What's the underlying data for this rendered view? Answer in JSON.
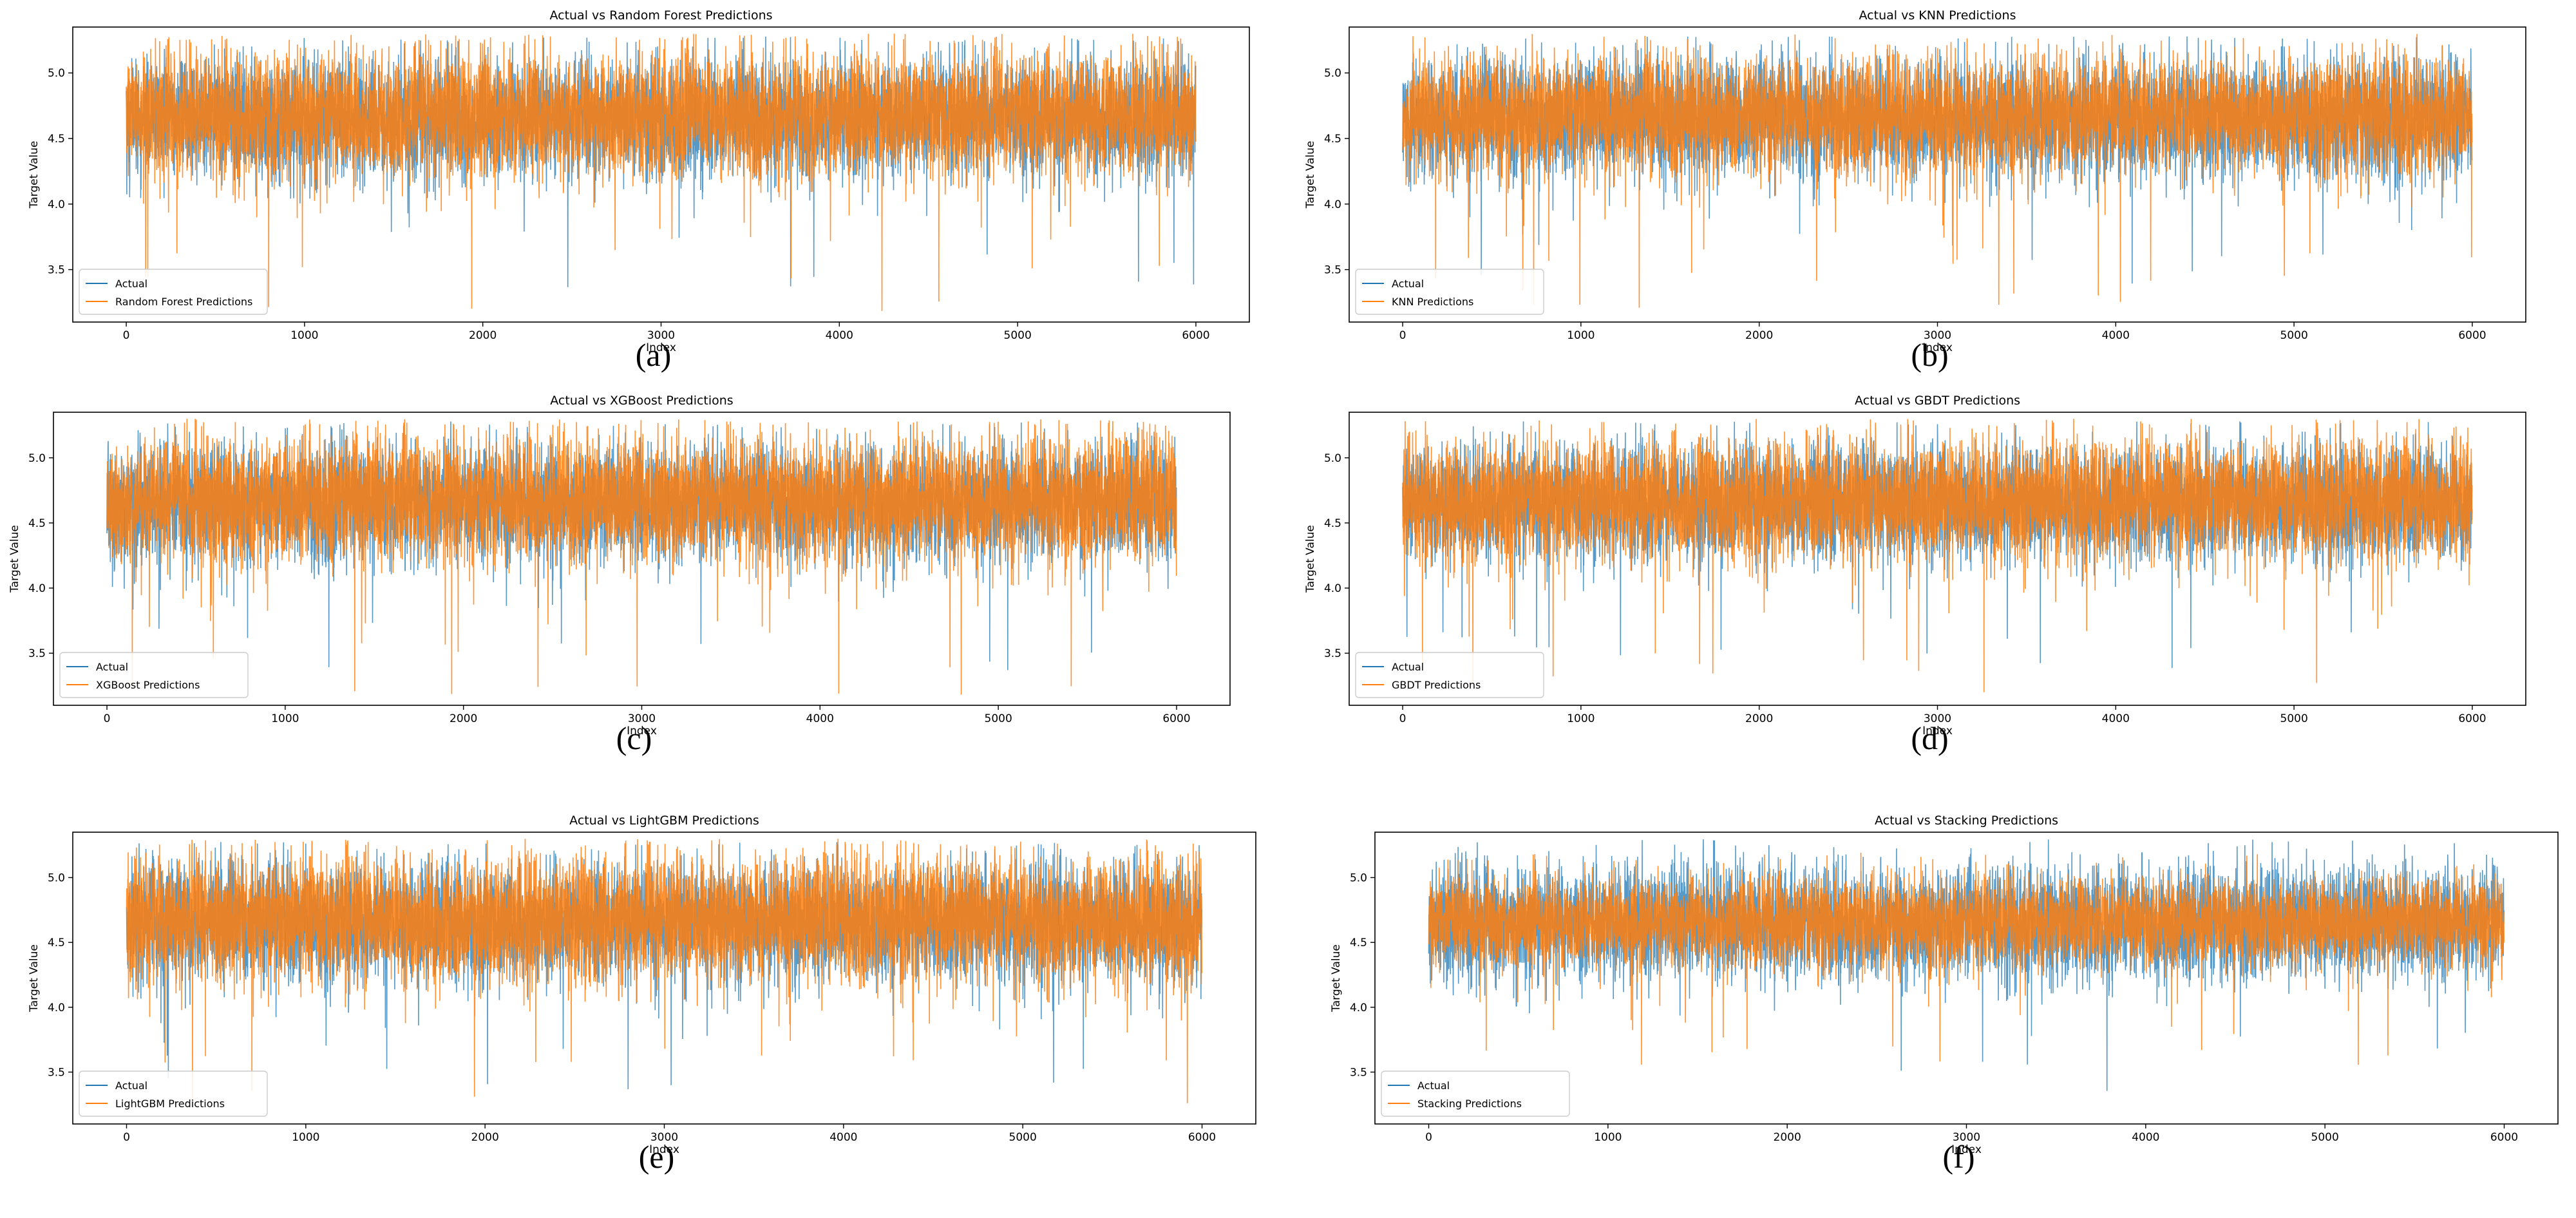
{
  "colors": {
    "actual": "#1f77b4",
    "predicted": "#ff7f0e",
    "axes": "#000000",
    "text": "#000000"
  },
  "chart_data": [
    {
      "panel": "(a)",
      "type": "line",
      "title": "Actual vs Random Forest Predictions",
      "xlabel": "Index",
      "ylabel": "Target Value",
      "xlim": [
        -300,
        6300
      ],
      "ylim": [
        3.1,
        5.35
      ],
      "xticks": [
        0,
        1000,
        2000,
        3000,
        4000,
        5000,
        6000
      ],
      "yticks": [
        3.5,
        4.0,
        4.5,
        5.0
      ],
      "legend": {
        "position": "lower-left",
        "entries": [
          "Actual",
          "Random Forest Predictions"
        ]
      },
      "grid": false,
      "n_points": 6000,
      "series": [
        {
          "name": "Actual",
          "color": "#1f77b4",
          "mean": 4.65,
          "range": [
            3.35,
            5.28
          ]
        },
        {
          "name": "Random Forest Predictions",
          "color": "#ff7f0e",
          "mean": 4.68,
          "range": [
            3.17,
            5.3
          ]
        }
      ]
    },
    {
      "panel": "(b)",
      "type": "line",
      "title": "Actual vs KNN Predictions",
      "xlabel": "Index",
      "ylabel": "Target Value",
      "xlim": [
        -300,
        6300
      ],
      "ylim": [
        3.1,
        5.35
      ],
      "xticks": [
        0,
        1000,
        2000,
        3000,
        4000,
        5000,
        6000
      ],
      "yticks": [
        3.5,
        4.0,
        4.5,
        5.0
      ],
      "legend": {
        "position": "lower-left",
        "entries": [
          "Actual",
          "KNN Predictions"
        ]
      },
      "grid": false,
      "n_points": 6000,
      "series": [
        {
          "name": "Actual",
          "color": "#1f77b4",
          "mean": 4.65,
          "range": [
            3.35,
            5.28
          ]
        },
        {
          "name": "KNN Predictions",
          "color": "#ff7f0e",
          "mean": 4.68,
          "range": [
            3.18,
            5.3
          ]
        }
      ]
    },
    {
      "panel": "(c)",
      "type": "line",
      "title": "Actual vs XGBoost Predictions",
      "xlabel": "Index",
      "ylabel": "Target Value",
      "xlim": [
        -300,
        6300
      ],
      "ylim": [
        3.1,
        5.35
      ],
      "xticks": [
        0,
        1000,
        2000,
        3000,
        4000,
        5000,
        6000
      ],
      "yticks": [
        3.5,
        4.0,
        4.5,
        5.0
      ],
      "legend": {
        "position": "lower-left",
        "entries": [
          "Actual",
          "XGBoost Predictions"
        ]
      },
      "grid": false,
      "n_points": 6000,
      "series": [
        {
          "name": "Actual",
          "color": "#1f77b4",
          "mean": 4.65,
          "range": [
            3.35,
            5.28
          ]
        },
        {
          "name": "XGBoost Predictions",
          "color": "#ff7f0e",
          "mean": 4.68,
          "range": [
            3.17,
            5.3
          ]
        }
      ]
    },
    {
      "panel": "(d)",
      "type": "line",
      "title": "Actual vs GBDT Predictions",
      "xlabel": "Index",
      "ylabel": "Target Value",
      "xlim": [
        -300,
        6300
      ],
      "ylim": [
        3.1,
        5.35
      ],
      "xticks": [
        0,
        1000,
        2000,
        3000,
        4000,
        5000,
        6000
      ],
      "yticks": [
        3.5,
        4.0,
        4.5,
        5.0
      ],
      "legend": {
        "position": "lower-left",
        "entries": [
          "Actual",
          "GBDT Predictions"
        ]
      },
      "grid": false,
      "n_points": 6000,
      "series": [
        {
          "name": "Actual",
          "color": "#1f77b4",
          "mean": 4.65,
          "range": [
            3.35,
            5.28
          ]
        },
        {
          "name": "GBDT Predictions",
          "color": "#ff7f0e",
          "mean": 4.68,
          "range": [
            3.2,
            5.3
          ]
        }
      ]
    },
    {
      "panel": "(e)",
      "type": "line",
      "title": "Actual vs LightGBM Predictions",
      "xlabel": "Index",
      "ylabel": "Target Value",
      "xlim": [
        -300,
        6300
      ],
      "ylim": [
        3.1,
        5.35
      ],
      "xticks": [
        0,
        1000,
        2000,
        3000,
        4000,
        5000,
        6000
      ],
      "yticks": [
        3.5,
        4.0,
        4.5,
        5.0
      ],
      "legend": {
        "position": "lower-left",
        "entries": [
          "Actual",
          "LightGBM Predictions"
        ]
      },
      "grid": false,
      "n_points": 6000,
      "series": [
        {
          "name": "Actual",
          "color": "#1f77b4",
          "mean": 4.65,
          "range": [
            3.35,
            5.28
          ]
        },
        {
          "name": "LightGBM Predictions",
          "color": "#ff7f0e",
          "mean": 4.68,
          "range": [
            3.17,
            5.3
          ]
        }
      ]
    },
    {
      "panel": "(f)",
      "type": "line",
      "title": "Actual vs Stacking Predictions",
      "xlabel": "Index",
      "ylabel": "Target Value",
      "xlim": [
        -300,
        6300
      ],
      "ylim": [
        3.1,
        5.35
      ],
      "xticks": [
        0,
        1000,
        2000,
        3000,
        4000,
        5000,
        6000
      ],
      "yticks": [
        3.5,
        4.0,
        4.5,
        5.0
      ],
      "legend": {
        "position": "lower-left",
        "entries": [
          "Actual",
          "Stacking Predictions"
        ]
      },
      "grid": false,
      "n_points": 6000,
      "series": [
        {
          "name": "Actual",
          "color": "#1f77b4",
          "mean": 4.65,
          "range": [
            3.2,
            5.3
          ]
        },
        {
          "name": "Stacking Predictions",
          "color": "#ff7f0e",
          "mean": 4.66,
          "range": [
            3.5,
            5.2
          ]
        }
      ]
    }
  ]
}
